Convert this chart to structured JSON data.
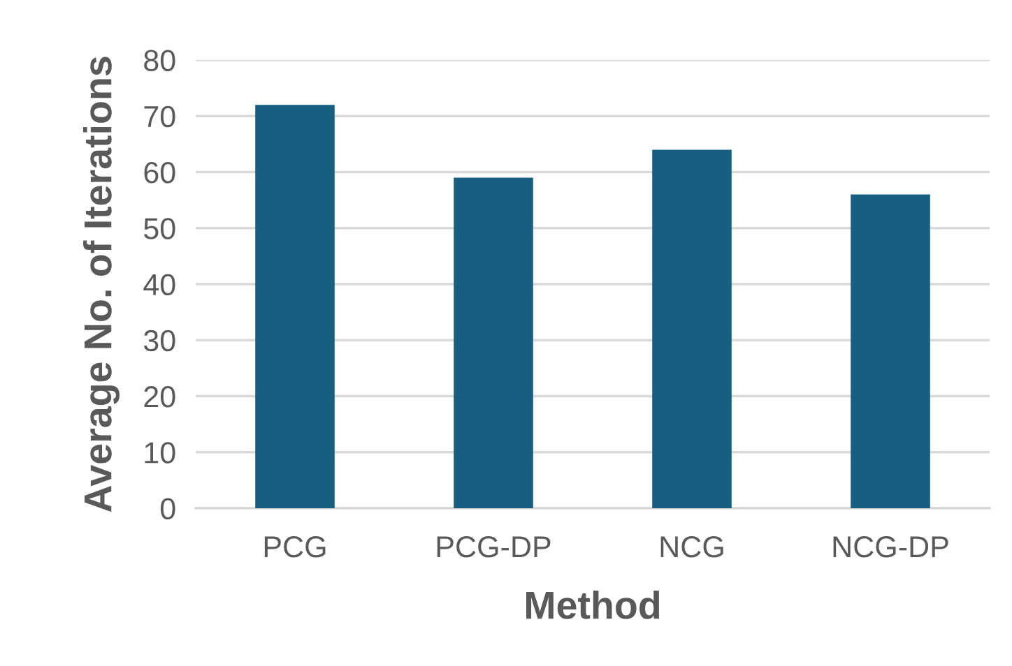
{
  "chart_data": {
    "type": "bar",
    "xlabel": "Method",
    "ylabel": "Average No. of Iterations",
    "categories": [
      "PCG",
      "PCG-DP",
      "NCG",
      "NCG-DP"
    ],
    "values": [
      72,
      59,
      64,
      56
    ],
    "color": "#175f80",
    "ylim": [
      0,
      80
    ],
    "yticks": [
      0,
      10,
      20,
      30,
      40,
      50,
      60,
      70,
      80
    ],
    "grid": "y"
  }
}
